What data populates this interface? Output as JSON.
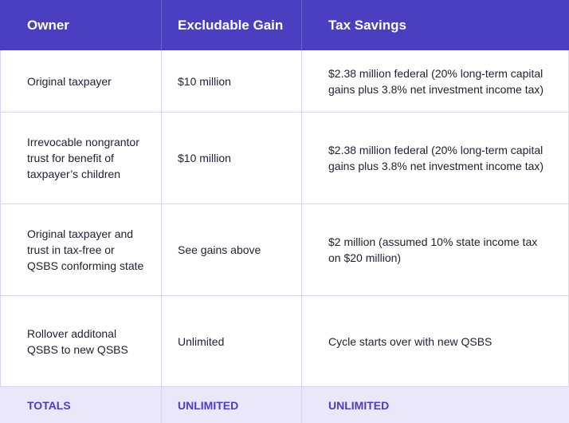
{
  "header": {
    "owner": "Owner",
    "excludable_gain": "Excludable Gain",
    "tax_savings": "Tax Savings"
  },
  "rows": [
    {
      "owner": "Original taxpayer",
      "gain": "$10 million",
      "savings": "$2.38 million federal (20% long-term capital gains plus 3.8% net investment income tax)"
    },
    {
      "owner": "Irrevocable nongrantor trust for benefit of taxpayer’s children",
      "gain": "$10 million",
      "savings": "$2.38 million federal (20% long-term capital gains plus 3.8% net investment income tax)"
    },
    {
      "owner": "Original taxpayer and trust in tax-free or QSBS conforming state",
      "gain": "See gains above",
      "savings": "$2 million (assumed 10% state income tax on $20 million)"
    },
    {
      "owner": "Rollover additonal QSBS to new QSBS",
      "gain": "Unlimited",
      "savings": "Cycle starts over with new QSBS"
    }
  ],
  "totals": {
    "label": "TOTALS",
    "gain": "UNLIMITED",
    "savings": "UNLIMITED"
  },
  "colors": {
    "header_bg": "#4a3fc1",
    "totals_bg": "#e9e7f9",
    "accent_text": "#4a3fc1"
  }
}
